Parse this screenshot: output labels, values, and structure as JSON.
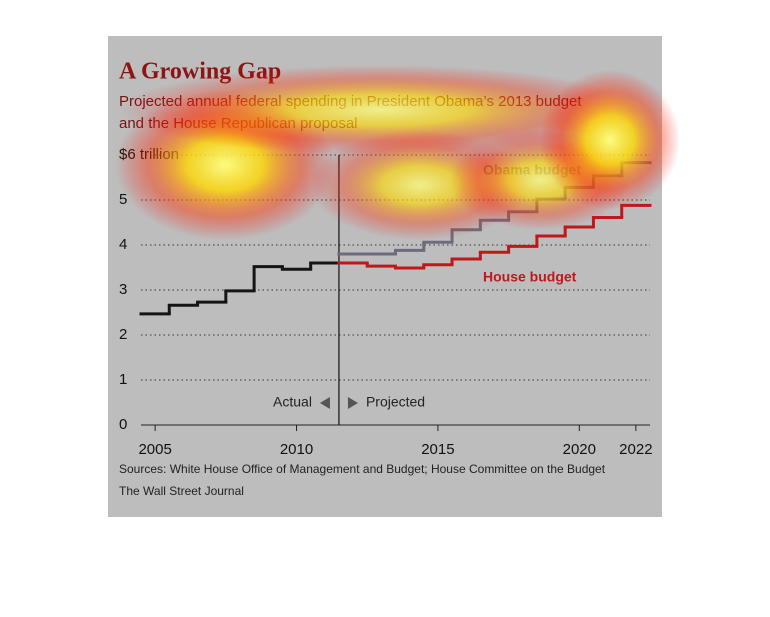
{
  "chart_data": {
    "type": "step-line",
    "title": "A Growing Gap",
    "subtitle": [
      "Projected annual federal spending in President Obama’s 2013 budget",
      "and the House Republican proposal"
    ],
    "x": [
      2005,
      2006,
      2007,
      2008,
      2009,
      2010,
      2011,
      2012,
      2013,
      2014,
      2015,
      2016,
      2017,
      2018,
      2019,
      2020,
      2021,
      2022
    ],
    "series": [
      {
        "name": "Actual",
        "color": "#151515",
        "values": [
          2.47,
          2.66,
          2.73,
          2.98,
          3.52,
          3.46,
          3.6,
          null,
          null,
          null,
          null,
          null,
          null,
          null,
          null,
          null,
          null,
          null
        ]
      },
      {
        "name": "Obama budget",
        "color": "#6d6b7c",
        "values": [
          null,
          null,
          null,
          null,
          null,
          null,
          null,
          3.8,
          3.8,
          3.88,
          4.06,
          4.34,
          4.55,
          4.74,
          5.02,
          5.28,
          5.54,
          5.83
        ]
      },
      {
        "name": "House budget",
        "color": "#c0181a",
        "values": [
          null,
          null,
          null,
          null,
          null,
          null,
          null,
          3.6,
          3.53,
          3.49,
          3.56,
          3.69,
          3.84,
          3.97,
          4.2,
          4.4,
          4.61,
          4.88
        ]
      }
    ],
    "annotations": [
      "Projected"
    ],
    "xlim": [
      2004.5,
      2022.5
    ],
    "ylim": [
      0,
      6
    ],
    "xticks": [
      2005,
      2010,
      2015,
      2020,
      2022
    ],
    "yticks": [
      0,
      1,
      2,
      3,
      4,
      5,
      {
        "value": 6,
        "label": "$6 trillion"
      }
    ],
    "grid": true,
    "sources": [
      "Sources: White House Office of Management and Budget; House Committee on the Budget",
      "The Wall Street Journal"
    ]
  }
}
